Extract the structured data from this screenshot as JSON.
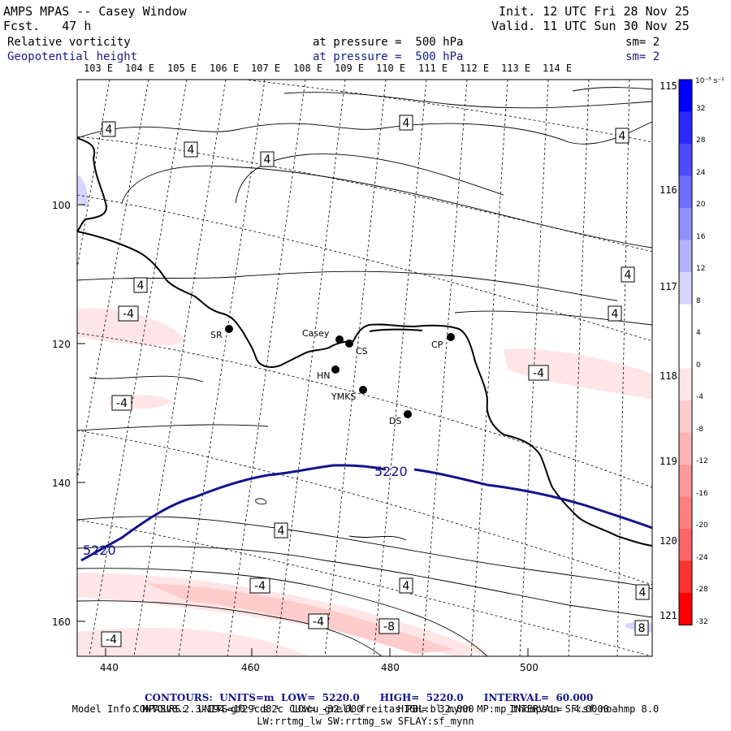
{
  "header": {
    "title": "AMPS MPAS -- Casey Window",
    "fcst": "Fcst.   47 h",
    "init": "Init. 12 UTC Fri 28 Nov 25",
    "valid": "Valid. 11 UTC Sun 30 Nov 25",
    "field1": "Relative vorticity",
    "field1_level": "at pressure =  500 hPa",
    "field1_sm": "sm= 2",
    "field2": "Geopotential height",
    "field2_level": "at pressure =  500 hPa",
    "field2_sm": "sm= 2"
  },
  "top_lon_labels": [
    "103 E",
    "104 E",
    "105 E",
    "106 E",
    "107 E",
    "108 E",
    "109 E",
    "110 E",
    "111 E",
    "112 E",
    "113 E",
    "114 E"
  ],
  "right_lon_labels": [
    "115 E",
    "116 E",
    "117 E",
    "118 E",
    "119 E",
    "120 E",
    "121 E"
  ],
  "x_ticks": [
    "440",
    "460",
    "480",
    "500"
  ],
  "y_ticks": [
    "100",
    "120",
    "140",
    "160"
  ],
  "stations": [
    {
      "name": "SR"
    },
    {
      "name": "Casey"
    },
    {
      "name": "CS"
    },
    {
      "name": "CP"
    },
    {
      "name": "HN"
    },
    {
      "name": "YMKS"
    },
    {
      "name": "DS"
    }
  ],
  "height_contour_label": "5220",
  "vorticity_labels": [
    "4",
    "4",
    "4",
    "4",
    "4",
    "4",
    "4",
    "4",
    "4",
    "-4",
    "-4",
    "-4",
    "-4",
    "-4",
    "-4",
    "-8",
    "4",
    "4",
    "8"
  ],
  "colorbar": {
    "unit": "10⁻⁵ s⁻¹",
    "labels": [
      "32",
      "28",
      "24",
      "20",
      "16",
      "12",
      "8",
      "4",
      "0",
      "-4",
      "-8",
      "-12",
      "-16",
      "-20",
      "-24",
      "-28",
      "-32"
    ],
    "colors": [
      "#0000ff",
      "#2a2aff",
      "#4c4cff",
      "#6e6eff",
      "#9090ff",
      "#b3b3ff",
      "#d6d6ff",
      "#ffffff",
      "#ffffff",
      "#ffe6e6",
      "#ffcccc",
      "#ffb3b3",
      "#ff9999",
      "#ff7f7f",
      "#ff6666",
      "#ff3333",
      "#ff0000"
    ]
  },
  "footer": {
    "line1_left": "CONTOURS:  UNITS=m  LOW=  5220.0",
    "line1_mid": "HIGH=  5220.0",
    "line1_right": "INTERVAL=  60.000",
    "line2_left": "CONTOURS:  UNITS=10⁻⁵ s⁻¹  LOW= -32.000",
    "line2_mid": "HIGH=  32.000",
    "line2_right": "INTERVAL=  4.0000",
    "model_info": "Model Info: MPASv8.2.3-194-gf29cd82c CU:cu_grell_freitas PBL:bl_mynn MP:mp_thompson SF:sf_noahmp 8.0",
    "model_info2": "LW:rrtmg_lw SW:rrtmg_sw SFLAY:sf_mynn"
  }
}
